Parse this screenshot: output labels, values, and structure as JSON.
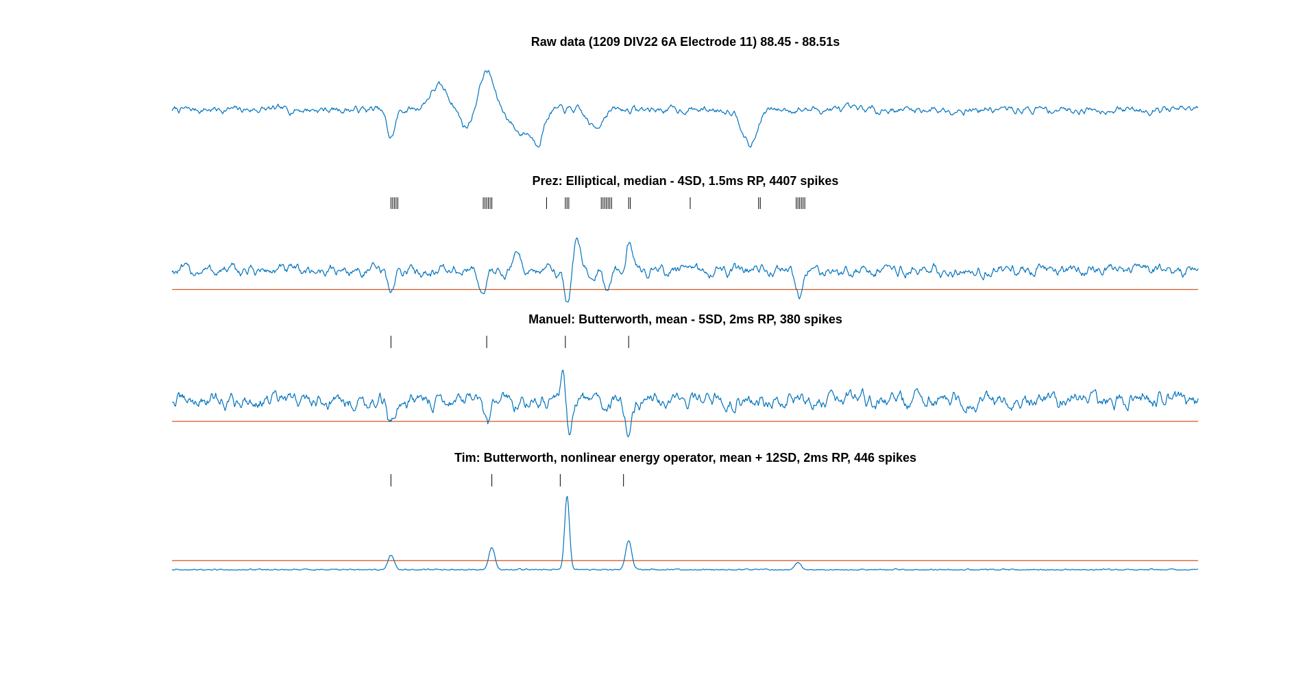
{
  "colors": {
    "background": "#ffffff",
    "trace": "#0072BD",
    "threshold": "#D95319",
    "spike_marker": "#000000",
    "title_text": "#000000"
  },
  "chart_data": [
    {
      "type": "line",
      "title": "Raw data (1209 DIV22 6A Electrode 11) 88.45 - 88.51s",
      "xlim": [
        88.45,
        88.51
      ],
      "ylim": [
        -1,
        1
      ],
      "axes_visible": false,
      "grid": false,
      "series": [
        {
          "kind": "raw_voltage_trace",
          "color": "#0072BD",
          "noise_amplitude": 0.08,
          "events": [
            {
              "t": 88.4628,
              "amp": -0.55,
              "width": 0.00035
            },
            {
              "t": 88.4656,
              "amp": 0.45,
              "width": 0.0008
            },
            {
              "t": 88.4672,
              "amp": -0.35,
              "width": 0.0005
            },
            {
              "t": 88.4684,
              "amp": 0.75,
              "width": 0.0006
            },
            {
              "t": 88.4704,
              "amp": -0.45,
              "width": 0.0008
            },
            {
              "t": 88.4714,
              "amp": -0.55,
              "width": 0.0005
            },
            {
              "t": 88.4747,
              "amp": -0.35,
              "width": 0.0006
            },
            {
              "t": 88.4838,
              "amp": -0.7,
              "width": 0.0006
            }
          ]
        }
      ]
    },
    {
      "type": "line",
      "title": "Prez: Elliptical, median - 4SD, 1.5ms RP, 4407 spikes",
      "xlim": [
        88.45,
        88.51
      ],
      "ylim": [
        -1,
        1
      ],
      "axes_visible": false,
      "grid": false,
      "spike_times": [
        88.4628,
        88.4629,
        88.463,
        88.4631,
        88.4632,
        88.4682,
        88.4683,
        88.4684,
        88.4685,
        88.4686,
        88.4687,
        88.4719,
        88.473,
        88.4731,
        88.4732,
        88.4751,
        88.4752,
        88.4753,
        88.4754,
        88.4755,
        88.4756,
        88.4757,
        88.4767,
        88.4768,
        88.4803,
        88.4843,
        88.4844,
        88.4865,
        88.4866,
        88.4867,
        88.4868,
        88.4869,
        88.487
      ],
      "threshold": -0.55,
      "series": [
        {
          "kind": "filtered_trace",
          "color": "#0072BD",
          "noise_amplitude": 0.18,
          "events": [
            {
              "t": 88.4628,
              "amp": -0.6,
              "width": 0.0003
            },
            {
              "t": 88.4682,
              "amp": -0.7,
              "width": 0.0003
            },
            {
              "t": 88.4702,
              "amp": 0.55,
              "width": 0.0003
            },
            {
              "t": 88.4731,
              "amp": -0.95,
              "width": 0.00025
            },
            {
              "t": 88.4737,
              "amp": 0.85,
              "width": 0.0003
            },
            {
              "t": 88.4754,
              "amp": -0.55,
              "width": 0.0003
            },
            {
              "t": 88.4767,
              "amp": 0.75,
              "width": 0.0003
            },
            {
              "t": 88.4867,
              "amp": -0.7,
              "width": 0.0003
            }
          ]
        }
      ]
    },
    {
      "type": "line",
      "title": "Manuel: Butterworth, mean - 5SD, 2ms RP, 380 spikes",
      "xlim": [
        88.45,
        88.51
      ],
      "ylim": [
        -1,
        1
      ],
      "axes_visible": false,
      "grid": false,
      "spike_times": [
        88.4628,
        88.4684,
        88.473,
        88.4767
      ],
      "threshold": -0.5,
      "series": [
        {
          "kind": "filtered_trace",
          "color": "#0072BD",
          "noise_amplitude": 0.2,
          "events": [
            {
              "t": 88.4628,
              "amp": -0.6,
              "width": 0.0003
            },
            {
              "t": 88.4684,
              "amp": -0.7,
              "width": 0.0003
            },
            {
              "t": 88.4729,
              "amp": 0.75,
              "width": 0.0003
            },
            {
              "t": 88.4732,
              "amp": -1.0,
              "width": 0.00025
            },
            {
              "t": 88.4767,
              "amp": -0.75,
              "width": 0.0003
            }
          ]
        }
      ]
    },
    {
      "type": "line",
      "title": "Tim: Butterworth, nonlinear energy operator, mean + 12SD, 2ms RP, 446 spikes",
      "xlim": [
        88.45,
        88.51
      ],
      "ylim": [
        -0.12,
        1
      ],
      "axes_visible": false,
      "grid": false,
      "spike_times": [
        88.4628,
        88.4687,
        88.4727,
        88.4764
      ],
      "threshold": 0.13,
      "series": [
        {
          "kind": "energy_trace",
          "color": "#0072BD",
          "noise_amplitude": 0.025,
          "events": [
            {
              "t": 88.4628,
              "amp": 0.2,
              "width": 0.00025
            },
            {
              "t": 88.4687,
              "amp": 0.3,
              "width": 0.00025
            },
            {
              "t": 88.4731,
              "amp": 1.0,
              "width": 0.0002
            },
            {
              "t": 88.4767,
              "amp": 0.4,
              "width": 0.00025
            },
            {
              "t": 88.4866,
              "amp": 0.1,
              "width": 0.00025
            }
          ]
        }
      ]
    }
  ]
}
